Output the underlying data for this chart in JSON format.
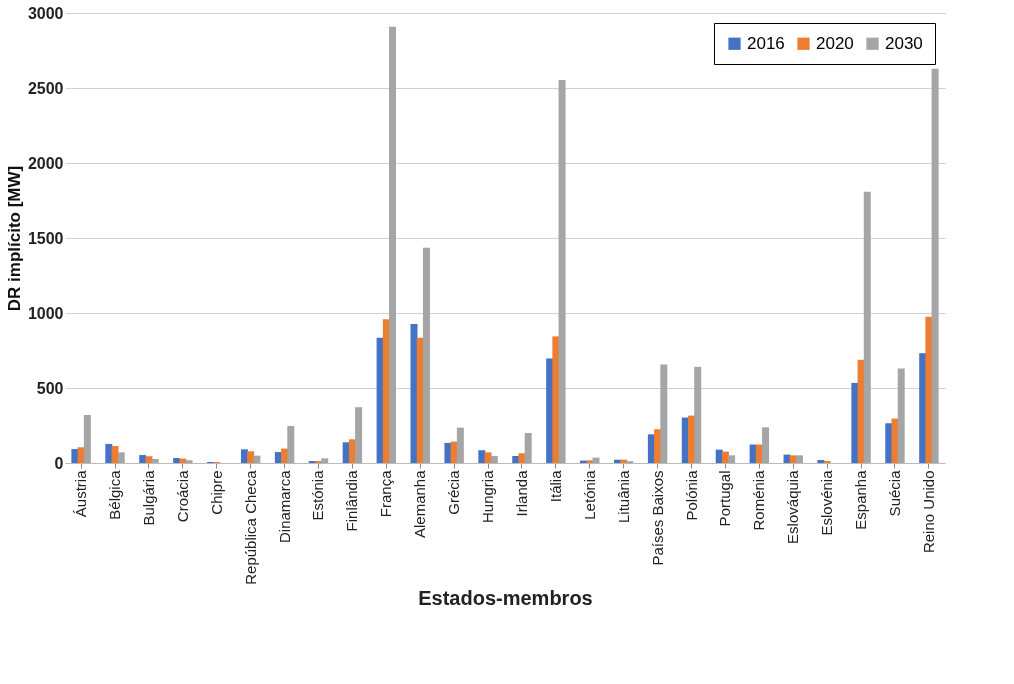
{
  "chart_data": {
    "type": "bar",
    "xlabel": "Estados-membros",
    "ylabel": "DR implícito [MW]",
    "categories": [
      "Áustria",
      "Bélgica",
      "Bulgária",
      "Croácia",
      "Chipre",
      "República Checa",
      "Dinamarca",
      "Estónia",
      "Finlândia",
      "França",
      "Alemanha",
      "Grécia",
      "Hungria",
      "Irlanda",
      "Itália",
      "Letónia",
      "Lituânia",
      "Países Baixos",
      "Polónia",
      "Portugal",
      "Roménia",
      "Eslováquia",
      "Eslovénia",
      "Espanha",
      "Suécia",
      "Reino Unido"
    ],
    "series": [
      {
        "name": "2016",
        "color": "#4472c4",
        "values": [
          93,
          127,
          53,
          33,
          7,
          91,
          73,
          13,
          138,
          835,
          926,
          134,
          85,
          47,
          697,
          16,
          22,
          191,
          303,
          89,
          123,
          56,
          20,
          534,
          265,
          732
        ]
      },
      {
        "name": "2020",
        "color": "#ed7d31",
        "values": [
          105,
          113,
          45,
          29,
          7,
          78,
          96,
          13,
          158,
          959,
          835,
          143,
          71,
          65,
          844,
          18,
          22,
          225,
          316,
          76,
          123,
          51,
          13,
          688,
          296,
          975
        ]
      },
      {
        "name": "2030",
        "color": "#a5a5a5",
        "values": [
          320,
          71,
          27,
          18,
          null,
          49,
          247,
          31,
          372,
          2908,
          1435,
          236,
          47,
          200,
          2553,
          36,
          12,
          657,
          641,
          51,
          238,
          51,
          null,
          1809,
          630,
          2628
        ]
      }
    ],
    "ylim": [
      0,
      3000
    ],
    "yticks": [
      0,
      500,
      1000,
      1500,
      2000,
      2500,
      3000
    ],
    "grid": "y",
    "legend": "top right"
  }
}
